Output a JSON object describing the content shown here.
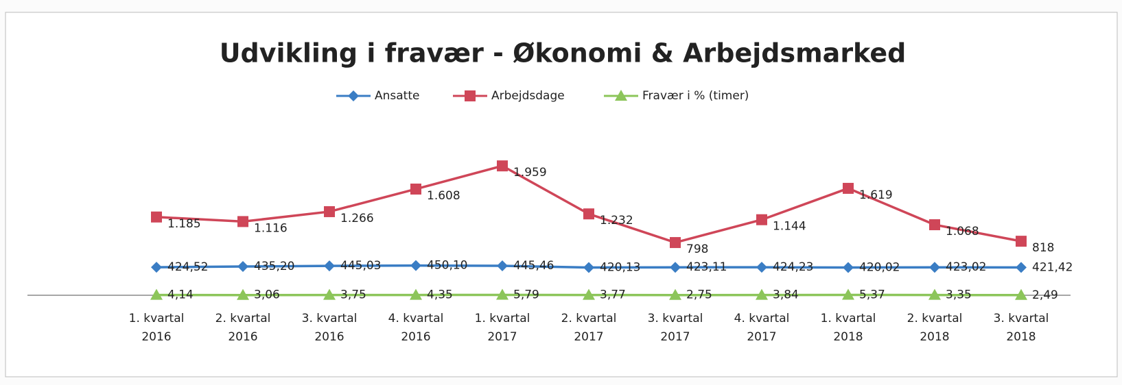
{
  "chart_data": {
    "type": "line",
    "title": "Udvikling i fravær -  Økonomi & Arbejdsmarked",
    "categories": [
      "1. kvartal 2016",
      "2. kvartal 2016",
      "3. kvartal 2016",
      "4. kvartal 2016",
      "1. kvartal 2017",
      "2. kvartal 2017",
      "3. kvartal 2017",
      "4. kvartal 2017",
      "1. kvartal 2018",
      "2. kvartal 2018",
      "3. kvartal 2018"
    ],
    "series": [
      {
        "name": "Ansatte",
        "color": "#3a7dc4",
        "marker": "diamond",
        "values": [
          424.52,
          435.2,
          445.03,
          450.1,
          445.46,
          420.13,
          423.11,
          424.23,
          420.02,
          423.02,
          421.42
        ],
        "value_labels": [
          "424,52",
          "435,20",
          "445,03",
          "450,10",
          "445,46",
          "420,13",
          "423,11",
          "424,23",
          "420,02",
          "423,02",
          "421,42"
        ]
      },
      {
        "name": "Arbejdsdage",
        "color": "#cf4658",
        "marker": "square",
        "values": [
          1185,
          1116,
          1266,
          1608,
          1959,
          1232,
          798,
          1144,
          1619,
          1068,
          818
        ],
        "value_labels": [
          "1.185",
          "1.116",
          "1.266",
          "1.608",
          "1.959",
          "1.232",
          "798",
          "1.144",
          "1.619",
          "1.068",
          "818"
        ]
      },
      {
        "name": "Fravær i % (timer)",
        "color": "#8cc55a",
        "marker": "triangle",
        "values": [
          4.14,
          3.06,
          3.75,
          4.35,
          5.79,
          3.77,
          2.75,
          3.84,
          5.37,
          3.35,
          2.49
        ],
        "value_labels": [
          "4,14",
          "3,06",
          "3,75",
          "4,35",
          "5,79",
          "3,77",
          "2,75",
          "3,84",
          "5,37",
          "3,35",
          "2,49"
        ]
      }
    ],
    "ylim": [
      0,
      2500
    ]
  }
}
